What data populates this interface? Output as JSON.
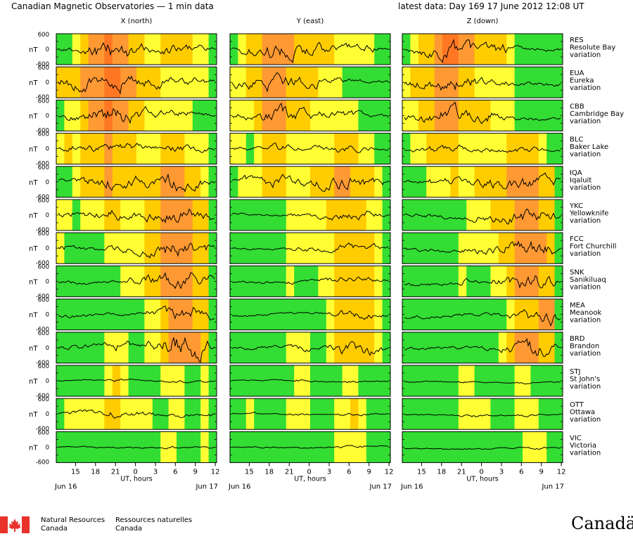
{
  "header": {
    "title": "Canadian Magnetic Observatories — 1 min data",
    "latest": "latest data: Day 169    17 June 2012 12:08 UT"
  },
  "colors": {
    "quiet": "#33dd33",
    "unsettled": "#ffff33",
    "active": "#ffcc00",
    "storm": "#ff9933",
    "major": "#ff7722",
    "trace": "#000000",
    "flag_red": "#e8322b"
  },
  "footer": {
    "agency_en_1": "Natural Resources",
    "agency_en_2": "Canada",
    "agency_fr_1": "Ressources naturelles",
    "agency_fr_2": "Canada",
    "wordmark": "Canadä"
  },
  "chart_data": {
    "type": "line",
    "title": "Canadian Magnetic Observatories — 1 min data",
    "ylabel": "nT",
    "xlabel": "UT, hours",
    "x_ticks": [
      "15",
      "18",
      "21",
      "0",
      "3",
      "6",
      "9",
      "12"
    ],
    "x_range_hours": [
      12.1,
      36.2
    ],
    "date_left": "Jun 16",
    "date_right": "Jun 17",
    "components": [
      "X (north)",
      "Y (east)",
      "Z (down)"
    ],
    "y_ticks": [
      "600",
      "0",
      "-600"
    ],
    "ylim": [
      -600,
      600
    ],
    "color_scale": [
      "quiet",
      "unsettled",
      "active",
      "storm",
      "major"
    ],
    "stations": [
      {
        "code": "RES",
        "name": "Resolute Bay",
        "suffix": "variation",
        "activity": [
          [
            0,
            0,
            1,
            2,
            3,
            3,
            4,
            3,
            3,
            2,
            2,
            1,
            1,
            2,
            2,
            2,
            2,
            1,
            1,
            0
          ],
          [
            0,
            1,
            2,
            2,
            3,
            3,
            3,
            3,
            2,
            2,
            2,
            2,
            2,
            1,
            1,
            1,
            1,
            1,
            0,
            0
          ],
          [
            0,
            1,
            2,
            2,
            3,
            4,
            4,
            3,
            3,
            2,
            2,
            2,
            2,
            1,
            0,
            0,
            0,
            0,
            0,
            0
          ]
        ],
        "activity_level": [
          2,
          2,
          2
        ]
      },
      {
        "code": "EUA",
        "name": "Eureka",
        "suffix": "variation",
        "activity": [
          [
            2,
            2,
            2,
            3,
            3,
            3,
            4,
            4,
            3,
            3,
            2,
            2,
            2,
            1,
            1,
            1,
            1,
            1,
            1,
            0
          ],
          [
            1,
            1,
            2,
            2,
            3,
            3,
            3,
            2,
            2,
            2,
            2,
            1,
            1,
            1,
            0,
            0,
            0,
            0,
            0,
            0
          ],
          [
            1,
            2,
            2,
            2,
            3,
            3,
            3,
            2,
            2,
            1,
            1,
            1,
            1,
            1,
            0,
            0,
            0,
            0,
            0,
            0
          ]
        ],
        "activity_level": [
          2,
          2,
          2
        ]
      },
      {
        "code": "CBB",
        "name": "Cambridge Bay",
        "suffix": "variation",
        "activity": [
          [
            0,
            1,
            1,
            2,
            3,
            3,
            4,
            3,
            3,
            2,
            2,
            1,
            1,
            1,
            1,
            1,
            1,
            0,
            0,
            0
          ],
          [
            1,
            1,
            1,
            2,
            3,
            3,
            3,
            2,
            2,
            2,
            1,
            1,
            1,
            1,
            1,
            1,
            0,
            0,
            0,
            0
          ],
          [
            1,
            1,
            2,
            2,
            3,
            3,
            3,
            2,
            2,
            2,
            2,
            1,
            1,
            1,
            0,
            0,
            0,
            0,
            0,
            0
          ]
        ],
        "activity_level": [
          2,
          2,
          2
        ]
      },
      {
        "code": "BLC",
        "name": "Baker Lake",
        "suffix": "variation",
        "activity": [
          [
            1,
            2,
            1,
            2,
            2,
            2,
            3,
            2,
            2,
            2,
            1,
            1,
            1,
            2,
            2,
            2,
            1,
            1,
            1,
            0
          ],
          [
            1,
            1,
            0,
            1,
            2,
            2,
            2,
            1,
            1,
            1,
            1,
            1,
            1,
            2,
            2,
            2,
            1,
            1,
            0,
            0
          ],
          [
            0,
            1,
            1,
            2,
            2,
            2,
            2,
            1,
            1,
            1,
            1,
            1,
            1,
            2,
            2,
            2,
            2,
            1,
            0,
            0
          ]
        ],
        "activity_level": [
          1,
          1,
          1
        ]
      },
      {
        "code": "IQA",
        "name": "Iqaluit",
        "suffix": "variation",
        "activity": [
          [
            0,
            0,
            1,
            2,
            2,
            2,
            3,
            2,
            2,
            2,
            2,
            2,
            2,
            3,
            3,
            3,
            2,
            2,
            1,
            0
          ],
          [
            0,
            1,
            1,
            1,
            2,
            2,
            2,
            1,
            1,
            1,
            2,
            2,
            2,
            3,
            3,
            2,
            2,
            2,
            1,
            0
          ],
          [
            0,
            0,
            0,
            1,
            1,
            1,
            2,
            1,
            1,
            2,
            2,
            2,
            2,
            3,
            3,
            3,
            3,
            2,
            2,
            0
          ]
        ],
        "activity_level": [
          2,
          2,
          2
        ]
      },
      {
        "code": "YKC",
        "name": "Yellowknife",
        "suffix": "variation",
        "activity": [
          [
            1,
            1,
            0,
            1,
            1,
            1,
            2,
            2,
            1,
            1,
            1,
            2,
            2,
            3,
            3,
            3,
            3,
            2,
            2,
            0
          ],
          [
            0,
            0,
            0,
            0,
            0,
            0,
            0,
            1,
            1,
            1,
            1,
            1,
            2,
            2,
            2,
            2,
            2,
            1,
            1,
            0
          ],
          [
            0,
            0,
            0,
            0,
            0,
            0,
            0,
            0,
            1,
            1,
            1,
            2,
            2,
            2,
            3,
            3,
            3,
            2,
            2,
            0
          ]
        ],
        "activity_level": [
          2,
          1,
          2
        ]
      },
      {
        "code": "FCC",
        "name": "Fort Churchill",
        "suffix": "variation",
        "activity": [
          [
            1,
            0,
            0,
            0,
            0,
            0,
            1,
            1,
            1,
            1,
            1,
            2,
            2,
            3,
            3,
            3,
            3,
            2,
            2,
            0
          ],
          [
            0,
            0,
            0,
            0,
            0,
            0,
            0,
            1,
            1,
            1,
            1,
            1,
            1,
            2,
            2,
            2,
            2,
            2,
            1,
            0
          ],
          [
            0,
            0,
            0,
            0,
            0,
            0,
            0,
            1,
            1,
            1,
            1,
            1,
            2,
            2,
            3,
            3,
            3,
            3,
            2,
            0
          ]
        ],
        "activity_level": [
          2,
          1,
          2
        ]
      },
      {
        "code": "SNK",
        "name": "Sanikiluaq",
        "suffix": "variation",
        "activity": [
          [
            0,
            0,
            0,
            0,
            0,
            0,
            0,
            0,
            1,
            1,
            1,
            2,
            2,
            3,
            3,
            3,
            3,
            2,
            2,
            0
          ],
          [
            0,
            0,
            0,
            0,
            0,
            0,
            0,
            1,
            0,
            0,
            0,
            1,
            1,
            2,
            2,
            2,
            2,
            2,
            1,
            0
          ],
          [
            0,
            0,
            0,
            0,
            0,
            0,
            0,
            1,
            0,
            0,
            0,
            1,
            1,
            2,
            3,
            3,
            3,
            2,
            2,
            0
          ]
        ],
        "activity_level": [
          2,
          1,
          2
        ]
      },
      {
        "code": "MEA",
        "name": "Meanook",
        "suffix": "variation",
        "activity": [
          [
            0,
            0,
            0,
            0,
            0,
            0,
            0,
            0,
            0,
            0,
            0,
            1,
            1,
            2,
            3,
            3,
            3,
            2,
            2,
            0
          ],
          [
            0,
            0,
            0,
            0,
            0,
            0,
            0,
            0,
            0,
            0,
            0,
            0,
            1,
            2,
            2,
            2,
            2,
            2,
            1,
            0
          ],
          [
            0,
            0,
            0,
            0,
            0,
            0,
            0,
            0,
            0,
            0,
            0,
            0,
            0,
            1,
            2,
            2,
            2,
            3,
            3,
            0
          ]
        ],
        "activity_level": [
          2,
          1,
          2
        ]
      },
      {
        "code": "BRD",
        "name": "Brandon",
        "suffix": "variation",
        "activity": [
          [
            0,
            0,
            0,
            0,
            0,
            0,
            1,
            1,
            1,
            0,
            0,
            1,
            1,
            2,
            3,
            3,
            3,
            3,
            2,
            0
          ],
          [
            0,
            0,
            0,
            0,
            0,
            0,
            0,
            1,
            1,
            1,
            0,
            0,
            1,
            2,
            2,
            2,
            2,
            2,
            1,
            0
          ],
          [
            0,
            0,
            0,
            0,
            0,
            0,
            0,
            0,
            0,
            0,
            0,
            0,
            1,
            2,
            3,
            3,
            3,
            2,
            2,
            0
          ]
        ],
        "activity_level": [
          3,
          2,
          2
        ]
      },
      {
        "code": "STJ",
        "name": "St John's",
        "suffix": "variation",
        "activity": [
          [
            0,
            0,
            0,
            0,
            0,
            0,
            1,
            2,
            1,
            0,
            0,
            0,
            0,
            1,
            1,
            1,
            0,
            0,
            1,
            0
          ],
          [
            0,
            0,
            0,
            0,
            0,
            0,
            0,
            0,
            1,
            1,
            0,
            0,
            0,
            0,
            1,
            1,
            0,
            0,
            0,
            0
          ],
          [
            0,
            0,
            0,
            0,
            0,
            0,
            0,
            1,
            1,
            0,
            0,
            0,
            0,
            0,
            1,
            1,
            0,
            0,
            0,
            0
          ]
        ],
        "activity_level": [
          0,
          0,
          0
        ]
      },
      {
        "code": "OTT",
        "name": "Ottawa",
        "suffix": "variation",
        "activity": [
          [
            0,
            1,
            1,
            1,
            1,
            1,
            2,
            2,
            1,
            1,
            1,
            1,
            0,
            0,
            1,
            1,
            0,
            0,
            1,
            0
          ],
          [
            0,
            0,
            1,
            0,
            0,
            0,
            0,
            1,
            1,
            1,
            0,
            0,
            0,
            1,
            1,
            2,
            1,
            0,
            0,
            0
          ],
          [
            0,
            0,
            0,
            0,
            0,
            0,
            0,
            1,
            1,
            1,
            1,
            0,
            0,
            0,
            1,
            1,
            1,
            0,
            0,
            0
          ]
        ],
        "activity_level": [
          1,
          0,
          0
        ]
      },
      {
        "code": "VIC",
        "name": "Victoria",
        "suffix": "variation",
        "activity": [
          [
            0,
            0,
            0,
            0,
            0,
            0,
            0,
            0,
            0,
            0,
            0,
            0,
            0,
            1,
            1,
            0,
            0,
            0,
            1,
            0
          ],
          [
            0,
            0,
            0,
            0,
            0,
            0,
            0,
            0,
            0,
            0,
            0,
            0,
            0,
            1,
            1,
            1,
            1,
            0,
            0,
            0
          ],
          [
            0,
            0,
            0,
            0,
            0,
            0,
            0,
            0,
            0,
            0,
            0,
            0,
            0,
            0,
            0,
            1,
            1,
            1,
            0,
            0
          ]
        ],
        "activity_level": [
          0,
          0,
          0
        ]
      }
    ]
  }
}
